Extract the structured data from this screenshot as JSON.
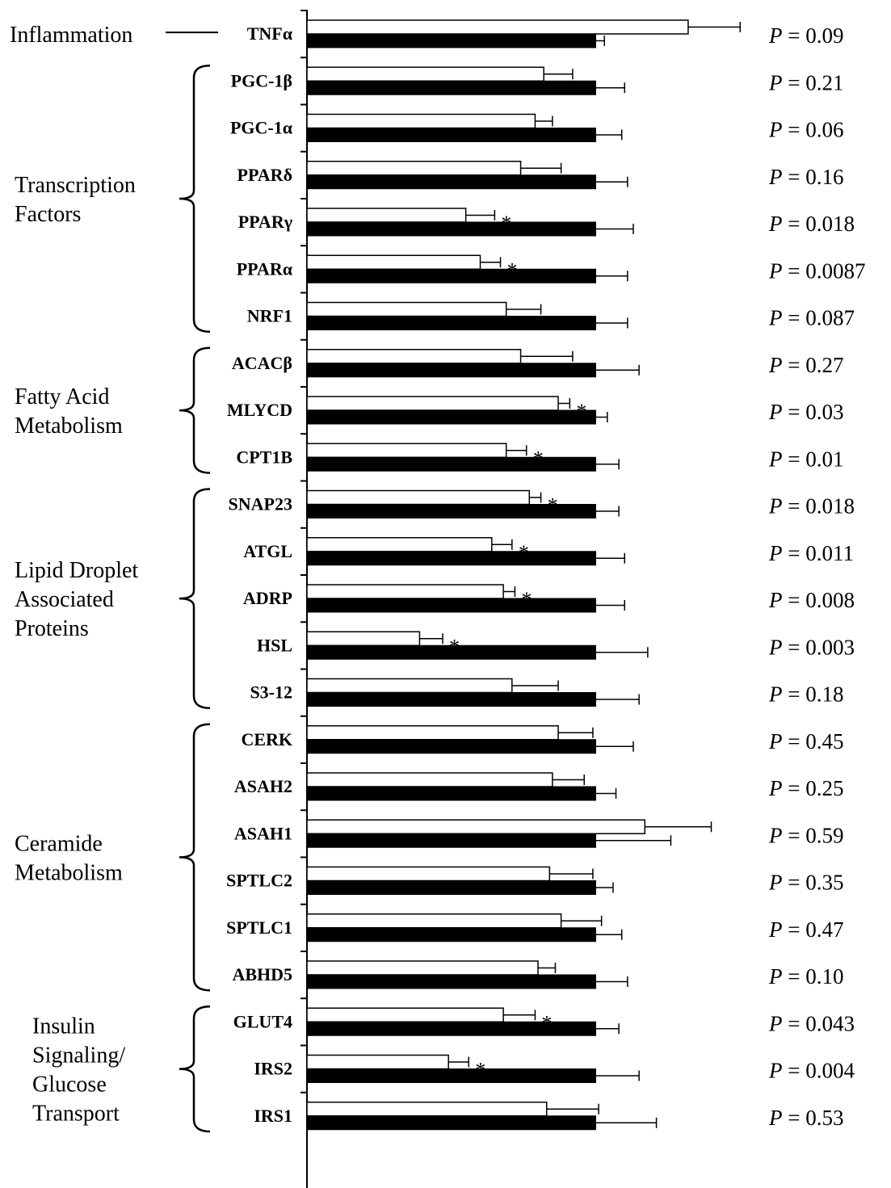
{
  "chart_data": {
    "type": "bar",
    "orientation": "horizontal",
    "xlim": [
      0,
      2
    ],
    "x_ticks": [
      "0",
      "0.5",
      "1",
      "1.5",
      "2"
    ],
    "x_tick_values": [
      0,
      0.5,
      1,
      1.5,
      2
    ],
    "legend": "none",
    "grid": false,
    "series": [
      {
        "fill": "#ffffff"
      },
      {
        "fill": "#000000"
      }
    ],
    "groups": [
      {
        "label_lines": [
          "Inflammation"
        ],
        "connector": "line",
        "rows": [
          0,
          0
        ]
      },
      {
        "label_lines": [
          "Transcription",
          "Factors"
        ],
        "connector": "brace",
        "rows": [
          1,
          6
        ]
      },
      {
        "label_lines": [
          "Fatty Acid",
          "Metabolism"
        ],
        "connector": "brace",
        "rows": [
          7,
          9
        ]
      },
      {
        "label_lines": [
          "Lipid Droplet",
          "Associated",
          "Proteins"
        ],
        "connector": "brace",
        "rows": [
          10,
          14
        ]
      },
      {
        "label_lines": [
          "Ceramide",
          "Metabolism"
        ],
        "connector": "brace",
        "rows": [
          15,
          20
        ]
      },
      {
        "label_lines": [
          "Insulin",
          "Signaling/",
          "Glucose",
          "Transport"
        ],
        "connector": "brace",
        "rows": [
          21,
          23
        ]
      }
    ],
    "rows": [
      {
        "gene": "TNFα",
        "white": 1.32,
        "white_err": 0.18,
        "black": 1.0,
        "black_err": 0.03,
        "sig": false,
        "p_prefix": "P",
        "p_value": " = 0.09"
      },
      {
        "gene": "PGC-1β",
        "white": 0.82,
        "white_err": 0.1,
        "black": 1.0,
        "black_err": 0.1,
        "sig": false,
        "p_prefix": "P",
        "p_value": " = 0.21"
      },
      {
        "gene": "PGC-1α",
        "white": 0.79,
        "white_err": 0.06,
        "black": 1.0,
        "black_err": 0.09,
        "sig": false,
        "p_prefix": "P",
        "p_value": " = 0.06"
      },
      {
        "gene": "PPARδ",
        "white": 0.74,
        "white_err": 0.14,
        "black": 1.0,
        "black_err": 0.11,
        "sig": false,
        "p_prefix": "P",
        "p_value": " = 0.16"
      },
      {
        "gene": "PPARγ",
        "white": 0.55,
        "white_err": 0.1,
        "black": 1.0,
        "black_err": 0.13,
        "sig": true,
        "p_prefix": "P",
        "p_value": " = 0.018"
      },
      {
        "gene": "PPARα",
        "white": 0.6,
        "white_err": 0.07,
        "black": 1.0,
        "black_err": 0.11,
        "sig": true,
        "p_prefix": "P",
        "p_value": " = 0.0087"
      },
      {
        "gene": "NRF1",
        "white": 0.69,
        "white_err": 0.12,
        "black": 1.0,
        "black_err": 0.11,
        "sig": false,
        "p_prefix": "P",
        "p_value": " = 0.087"
      },
      {
        "gene": "ACACβ",
        "white": 0.74,
        "white_err": 0.18,
        "black": 1.0,
        "black_err": 0.15,
        "sig": false,
        "p_prefix": "P",
        "p_value": " = 0.27"
      },
      {
        "gene": "MLYCD",
        "white": 0.87,
        "white_err": 0.04,
        "black": 1.0,
        "black_err": 0.04,
        "sig": true,
        "p_prefix": "P",
        "p_value": " = 0.03"
      },
      {
        "gene": "CPT1B",
        "white": 0.69,
        "white_err": 0.07,
        "black": 1.0,
        "black_err": 0.08,
        "sig": true,
        "p_prefix": "P",
        "p_value": " = 0.01"
      },
      {
        "gene": "SNAP23",
        "white": 0.77,
        "white_err": 0.04,
        "black": 1.0,
        "black_err": 0.08,
        "sig": true,
        "p_prefix": "P",
        "p_value": " = 0.018"
      },
      {
        "gene": "ATGL",
        "white": 0.64,
        "white_err": 0.07,
        "black": 1.0,
        "black_err": 0.1,
        "sig": true,
        "p_prefix": "P",
        "p_value": " = 0.011"
      },
      {
        "gene": "ADRP",
        "white": 0.68,
        "white_err": 0.04,
        "black": 1.0,
        "black_err": 0.1,
        "sig": true,
        "p_prefix": "P",
        "p_value": " = 0.008"
      },
      {
        "gene": "HSL",
        "white": 0.39,
        "white_err": 0.08,
        "black": 1.0,
        "black_err": 0.18,
        "sig": true,
        "p_prefix": "P",
        "p_value": " = 0.003"
      },
      {
        "gene": "S3-12",
        "white": 0.71,
        "white_err": 0.16,
        "black": 1.0,
        "black_err": 0.15,
        "sig": false,
        "p_prefix": "P",
        "p_value": " = 0.18"
      },
      {
        "gene": "CERK",
        "white": 0.87,
        "white_err": 0.12,
        "black": 1.0,
        "black_err": 0.13,
        "sig": false,
        "p_prefix": "P",
        "p_value": " = 0.45"
      },
      {
        "gene": "ASAH2",
        "white": 0.85,
        "white_err": 0.11,
        "black": 1.0,
        "black_err": 0.07,
        "sig": false,
        "p_prefix": "P",
        "p_value": " = 0.25"
      },
      {
        "gene": "ASAH1",
        "white": 1.17,
        "white_err": 0.23,
        "black": 1.0,
        "black_err": 0.26,
        "sig": false,
        "p_prefix": "P",
        "p_value": " = 0.59"
      },
      {
        "gene": "SPTLC2",
        "white": 0.84,
        "white_err": 0.15,
        "black": 1.0,
        "black_err": 0.06,
        "sig": false,
        "p_prefix": "P",
        "p_value": " = 0.35"
      },
      {
        "gene": "SPTLC1",
        "white": 0.88,
        "white_err": 0.14,
        "black": 1.0,
        "black_err": 0.09,
        "sig": false,
        "p_prefix": "P",
        "p_value": " = 0.47"
      },
      {
        "gene": "ABHD5",
        "white": 0.8,
        "white_err": 0.06,
        "black": 1.0,
        "black_err": 0.11,
        "sig": false,
        "p_prefix": "P",
        "p_value": " = 0.10"
      },
      {
        "gene": "GLUT4",
        "white": 0.68,
        "white_err": 0.11,
        "black": 1.0,
        "black_err": 0.08,
        "sig": true,
        "p_prefix": "P",
        "p_value": " = 0.043"
      },
      {
        "gene": "IRS2",
        "white": 0.49,
        "white_err": 0.07,
        "black": 1.0,
        "black_err": 0.15,
        "sig": true,
        "p_prefix": "P",
        "p_value": " = 0.004"
      },
      {
        "gene": "IRS1",
        "white": 0.83,
        "white_err": 0.18,
        "black": 1.0,
        "black_err": 0.21,
        "sig": false,
        "p_prefix": "P",
        "p_value": " = 0.53"
      }
    ],
    "significance_marker": "*"
  }
}
